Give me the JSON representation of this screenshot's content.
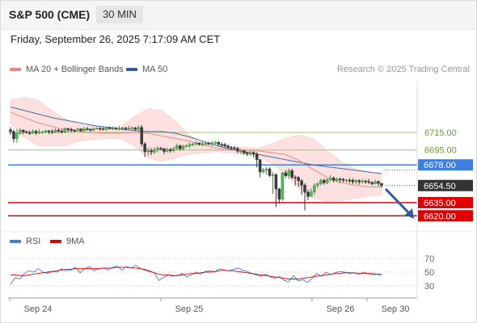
{
  "header": {
    "instrument": "S&P 500 (CME)",
    "timeframe": "30 MIN",
    "datetime": "Friday, September 26, 2025 7:17:09 AM CET"
  },
  "legend": {
    "ma20": "MA 20 + Bollinger Bands",
    "ma50": "MA 50",
    "ma20_color": "#f08080",
    "ma50_color": "#2e5e9e",
    "credit": "Research © 2025 Trading Central"
  },
  "rsi_legend": {
    "rsi": "RSI",
    "ma9": "9MA",
    "rsi_color": "#4a78d4",
    "ma9_color": "#dd0000"
  },
  "chart_data": [
    {
      "type": "candlestick",
      "title": "S&P 500 (CME) 30 MIN",
      "x_ticks": [
        "Sep 24",
        "Sep 25",
        "Sep 26",
        "Sep 30"
      ],
      "current_price": 6654.5,
      "levels": [
        {
          "value": 6715.0,
          "label": "6715.00",
          "kind": "resistance",
          "color": "#9ccc65"
        },
        {
          "value": 6695.0,
          "label": "6695.00",
          "kind": "resistance",
          "color": "#9ccc65"
        },
        {
          "value": 6678.0,
          "label": "6678.00",
          "kind": "pivot",
          "color": "#3f7fe0"
        },
        {
          "value": 6635.0,
          "label": "6635.00",
          "kind": "support",
          "color": "#e00000"
        },
        {
          "value": 6620.0,
          "label": "6620.00",
          "kind": "support",
          "color": "#e00000"
        }
      ],
      "price_label": {
        "value": "6654.50",
        "color": "#333333"
      },
      "forecast": "down",
      "forecast_color": "#2e5e9e",
      "ma50": [
        6744,
        6740,
        6736,
        6732,
        6729,
        6726,
        6723,
        6721,
        6719,
        6717,
        6716,
        6716,
        6714,
        6710,
        6705,
        6700,
        6696,
        6693,
        6690,
        6687,
        6684,
        6681,
        6678,
        6676,
        6674,
        6672,
        6670,
        6668
      ],
      "ma20": [
        6738,
        6732,
        6726,
        6722,
        6718,
        6716,
        6715,
        6714,
        6714,
        6715,
        6714,
        6711,
        6708,
        6705,
        6701,
        6697,
        6695,
        6694,
        6694,
        6692,
        6690,
        6683,
        6673,
        6664,
        6658,
        6655,
        6653,
        6653
      ],
      "bb_upper": [
        6752,
        6755,
        6752,
        6740,
        6730,
        6724,
        6722,
        6721,
        6721,
        6733,
        6742,
        6740,
        6728,
        6712,
        6704,
        6700,
        6699,
        6698,
        6697,
        6702,
        6708,
        6712,
        6708,
        6695,
        6682,
        6674,
        6670,
        6668
      ],
      "bb_lower": [
        6725,
        6710,
        6700,
        6700,
        6700,
        6705,
        6707,
        6708,
        6708,
        6700,
        6686,
        6682,
        6686,
        6690,
        6692,
        6693,
        6692,
        6690,
        6688,
        6680,
        6667,
        6652,
        6640,
        6636,
        6637,
        6640,
        6642,
        6644
      ],
      "close": [
        6716.0,
        6708.0,
        6714.0,
        6717.6,
        6715.8,
        6714.7,
        6714.2,
        6716.3,
        6714.4,
        6715.4,
        6715.4,
        6716.8,
        6716.0,
        6715.7,
        6717.6,
        6716.4,
        6715.3,
        6719.3,
        6718.6,
        6717.5,
        6717.4,
        6718.9,
        6716.9,
        6719.0,
        6718.9,
        6717.6,
        6719.1,
        6719.7,
        6719.1,
        6718.6,
        6720.3,
        6719.7,
        6719.9,
        6719.3,
        6719.4,
        6720.1,
        6719.6,
        6719.8,
        6720.1,
        6718.6,
        6720.6,
        6702.0,
        6693.0,
        6694.0,
        6692.7,
        6695.3,
        6697.0,
        6696.6,
        6693.4,
        6695.5,
        6694.2,
        6696.9,
        6699.7,
        6696.3,
        6699.5,
        6699.5,
        6701.3,
        6701.8,
        6703.0,
        6701.2,
        6702.1,
        6702.6,
        6702.0,
        6703.0,
        6703.7,
        6701.3,
        6701.2,
        6699.7,
        6698.0,
        6697.4,
        6696.8,
        6693.7,
        6693.9,
        6691.6,
        6690.6,
        6692.1,
        6690.4,
        6684.0,
        6670.0,
        6672.3,
        6673.4,
        6665.9,
        6666.8,
        6650.5,
        6639.0,
        6668.9,
        6665.7,
        6671.4,
        6663.9,
        6663.6,
        6660.0,
        6655.0,
        6646.9,
        6642.0,
        6647.3,
        6654.7,
        6656.5,
        6660.3,
        6657.7,
        6661.2,
        6663.0,
        6660.4,
        6661.8,
        6661.5,
        6660.4,
        6660.7,
        6660.5,
        6658.7,
        6660.1,
        6658.6,
        6659.7,
        6659.0,
        6658.1,
        6656.6,
        6659.0,
        6657.0,
        6654.5
      ],
      "high": [
        6720.7,
        6718.0,
        6719.0,
        6719.5,
        6718.4,
        6717.1,
        6717.2,
        6718.7,
        6718.0,
        6718.9,
        6717.3,
        6718.2,
        6717.7,
        6718.5,
        6719.5,
        6719.3,
        6718.5,
        6720.8,
        6720.5,
        6720.2,
        6718.7,
        6720.6,
        6719.8,
        6721.3,
        6721.3,
        6719.1,
        6720.9,
        6720.9,
        6721.0,
        6720.9,
        6721.6,
        6721.6,
        6721.9,
        6721.0,
        6722.6,
        6721.6,
        6721.2,
        6722.8,
        6722.2,
        6721.4,
        6723.0,
        6723.5,
        6704.0,
        6698.0,
        6697.0,
        6698.2,
        6699.4,
        6698.5,
        6697.1,
        6697.8,
        6697.5,
        6698.5,
        6702.4,
        6701.5,
        6700.9,
        6701.8,
        6703.3,
        6703.3,
        6704.9,
        6703.6,
        6704.2,
        6704.5,
        6704.3,
        6705.6,
        6705.7,
        6705.1,
        6703.7,
        6703.1,
        6701.3,
        6699.6,
        6699.3,
        6698.5,
        6696.2,
        6695.5,
        6692.6,
        6693.8,
        6693.4,
        6692.4,
        6685.0,
        6674.6,
        6675.2,
        6675.2,
        6669.9,
        6668.6,
        6652.0,
        6670.0,
        6672.0,
        6673.9,
        6673.4,
        6666.3,
        6665.3,
        6661.9,
        6657.0,
        6650.0,
        6650.9,
        6657.2,
        6658.4,
        6662.3,
        6662.5,
        6662.9,
        6666.3,
        6665.0,
        6663.8,
        6663.6,
        6663.2,
        6662.1,
        6662.8,
        6662.8,
        6662.0,
        6661.6,
        6662.1,
        6661.1,
        6662.0,
        6659.2,
        6660.9,
        6660.2,
        6657.0
      ],
      "low": [
        6712.3,
        6703.5,
        6703.3,
        6711.9,
        6712.9,
        6713.9,
        6712.1,
        6713.1,
        6712.1,
        6712.7,
        6713.7,
        6714.3,
        6713.1,
        6713.3,
        6714.2,
        6714.4,
        6713.9,
        6714.2,
        6715.3,
        6715.2,
        6714.9,
        6716.3,
        6715.5,
        6715.4,
        6717.3,
        6715.7,
        6716.3,
        6718.2,
        6716.9,
        6717.2,
        6716.7,
        6718.0,
        6717.7,
        6717.7,
        6717.4,
        6717.4,
        6717.3,
        6718.5,
        6718.4,
        6716.5,
        6717.1,
        6699.0,
        6687.0,
        6689.0,
        6689.2,
        6690.3,
        6692.5,
        6694.4,
        6690.2,
        6692.1,
        6691.8,
        6692.3,
        6694.7,
        6694.3,
        6694.3,
        6698.3,
        6697.4,
        6699.5,
        6699.8,
        6700.3,
        6698.9,
        6700.3,
        6700.8,
        6699.5,
        6701.0,
        6700.0,
        6698.8,
        6697.3,
        6696.5,
        6694.7,
        6694.6,
        6691.3,
        6690.3,
        6689.5,
        6688.3,
        6688.4,
        6686.4,
        6675.0,
        6664.0,
        6668.3,
        6666.9,
        6664.4,
        6645.0,
        6630.0,
        6634.0,
        6637.0,
        6663.3,
        6662.2,
        6661.7,
        6654.4,
        6653.1,
        6644.0,
        6626.0,
        6638.0,
        6641.8,
        6644.2,
        6651.6,
        6654.4,
        6655.5,
        6656.1,
        6659.2,
        6658.1,
        6658.4,
        6657.4,
        6658.2,
        6658.2,
        6657.2,
        6656.2,
        6656.1,
        6655.5,
        6656.5,
        6656.2,
        6656.1,
        6654.3,
        6655.6,
        6654.1,
        6652.0
      ]
    },
    {
      "type": "line",
      "title": "RSI",
      "y_ticks": [
        70,
        50,
        30
      ],
      "x_ticks": [
        "Sep 24",
        "Sep 25",
        "Sep 26",
        "Sep 30"
      ],
      "series": [
        {
          "name": "RSI",
          "color": "#4a78d4",
          "values": [
            32,
            42,
            40,
            48,
            52,
            50,
            55,
            50,
            48,
            51,
            50,
            55,
            52,
            53,
            57,
            49,
            55,
            58,
            52,
            55,
            56,
            53,
            57,
            59,
            53,
            58,
            56,
            60,
            55,
            54,
            52,
            49,
            38,
            42,
            46,
            44,
            45,
            48,
            43,
            46,
            50,
            47,
            51,
            52,
            50,
            55,
            53,
            52,
            54,
            56,
            53,
            51,
            48,
            46,
            44,
            47,
            43,
            41,
            44,
            38,
            36,
            45,
            37,
            39,
            35,
            41,
            48,
            44,
            50,
            46,
            49,
            51,
            50,
            48,
            49,
            47,
            50,
            48,
            46,
            47,
            45
          ]
        },
        {
          "name": "9MA",
          "color": "#dd0000",
          "values": [
            46,
            46,
            45,
            45,
            46,
            47,
            48,
            49,
            50,
            51,
            52,
            53,
            54,
            54,
            55,
            55,
            55,
            55,
            55,
            55,
            56,
            56,
            56,
            57,
            57,
            57,
            56,
            56,
            55,
            53,
            51,
            49,
            47,
            46,
            46,
            45,
            45,
            46,
            47,
            48,
            48,
            49,
            50,
            50,
            51,
            52,
            53,
            52,
            52,
            51,
            50,
            49,
            48,
            47,
            46,
            45,
            44,
            43,
            42,
            41,
            40,
            40,
            40,
            41,
            42,
            43,
            44,
            45,
            46,
            47,
            48,
            48,
            49,
            49,
            49,
            48,
            48,
            48,
            48,
            47,
            47
          ]
        }
      ]
    }
  ]
}
